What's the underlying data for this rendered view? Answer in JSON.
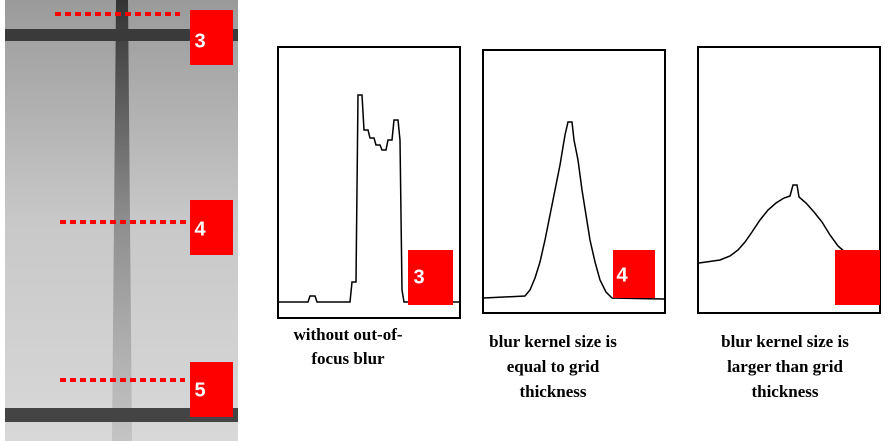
{
  "photo_markers": [
    "3",
    "4",
    "5"
  ],
  "panels": [
    {
      "marker": "3",
      "caption": [
        "without out-of-",
        "focus blur"
      ]
    },
    {
      "marker": "4",
      "caption": [
        "blur kernel size is",
        "equal to grid",
        "thickness"
      ]
    },
    {
      "caption": [
        "blur kernel size is",
        "larger than grid",
        "thickness"
      ]
    }
  ]
}
